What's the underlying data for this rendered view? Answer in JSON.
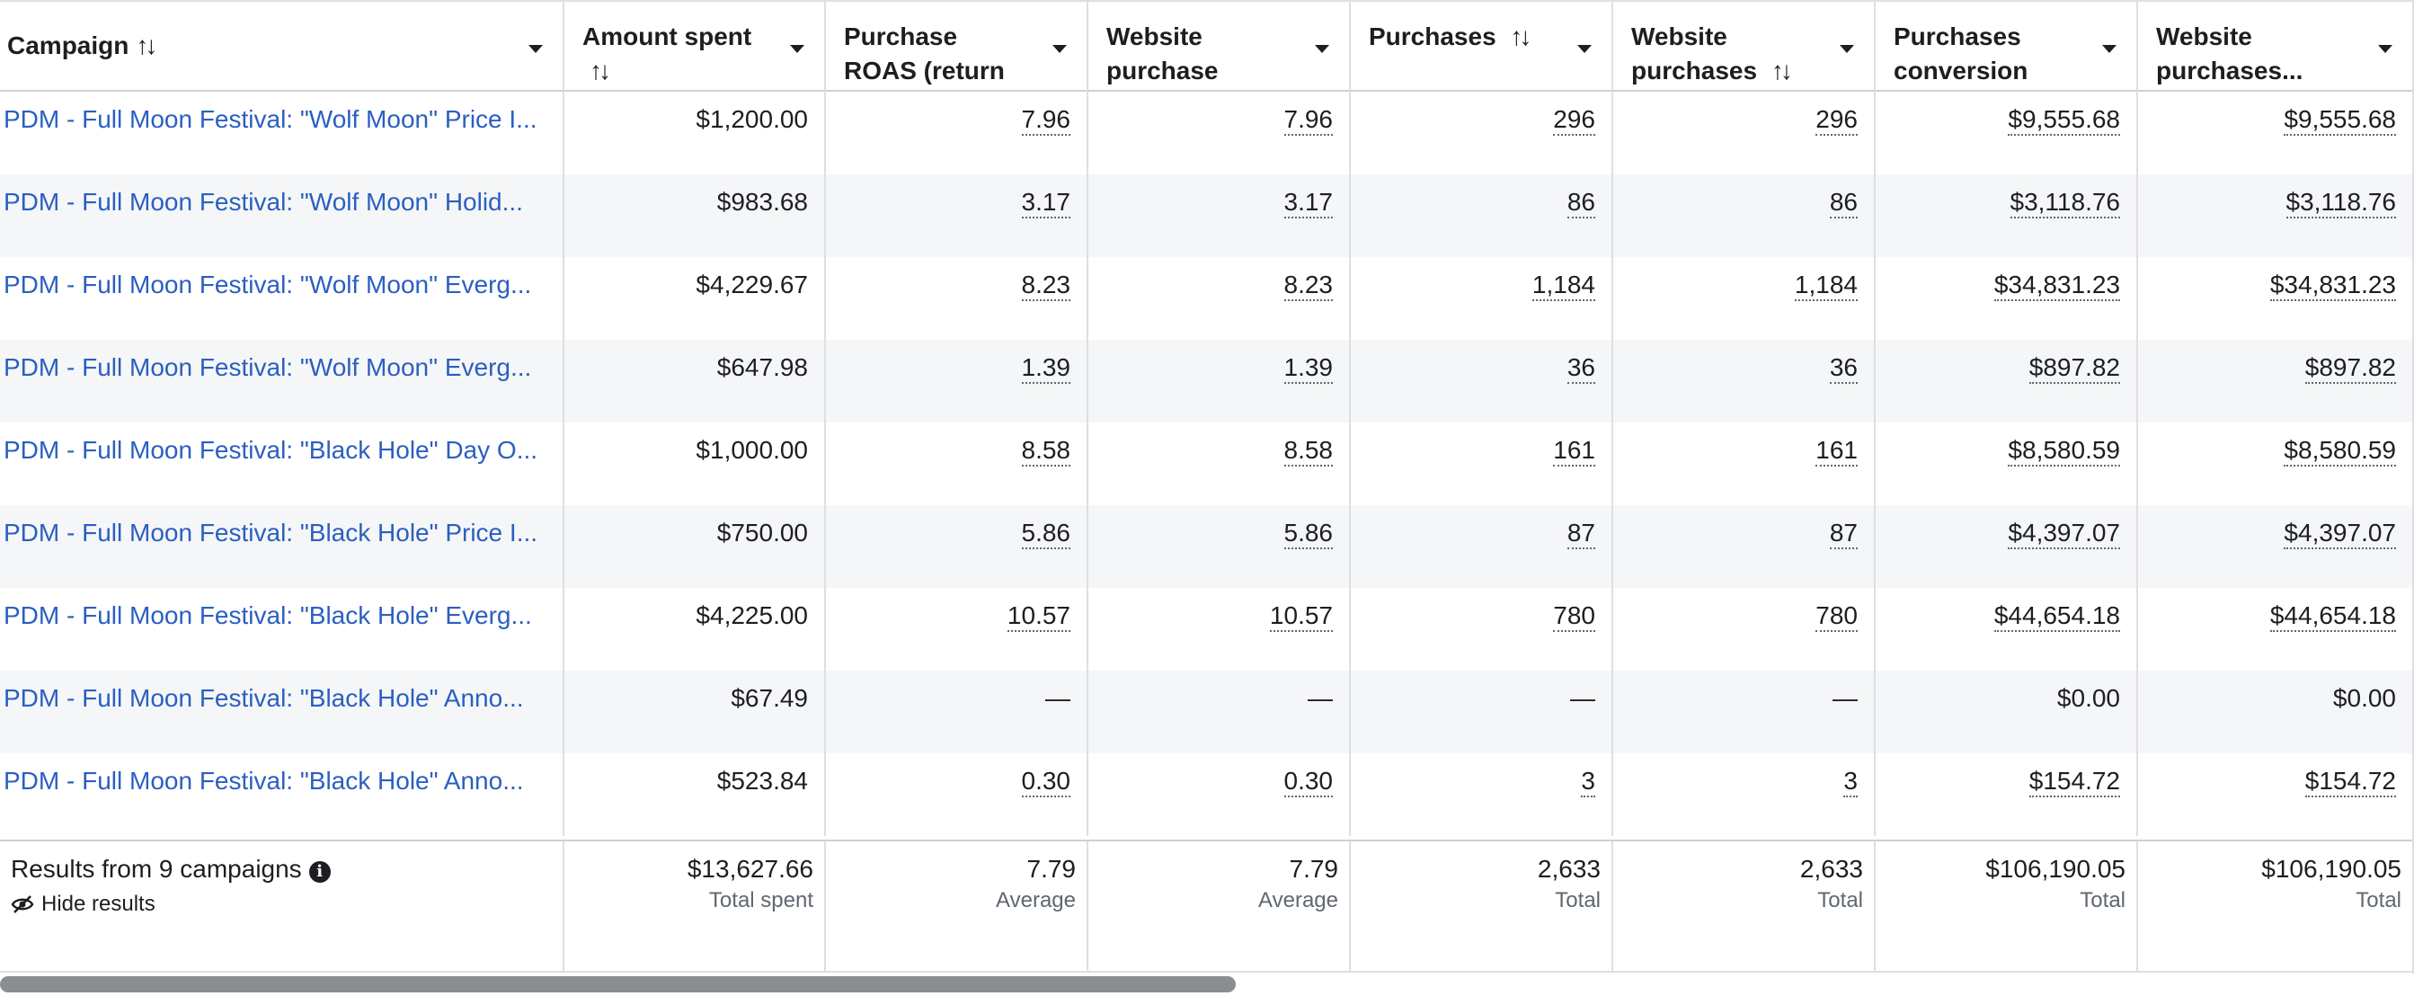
{
  "columns": [
    {
      "label": "Campaign",
      "sortable": true
    },
    {
      "label": "Amount spent",
      "sortable": true
    },
    {
      "label": "Purchase ROAS (return on ad...",
      "sortable": false
    },
    {
      "label": "Website purchase ROA...",
      "sortable": false
    },
    {
      "label": "Purchases",
      "sortable": true
    },
    {
      "label": "Website purchases",
      "sortable": true
    },
    {
      "label": "Purchases conversion val...",
      "sortable": false
    },
    {
      "label": "Website purchases...",
      "sortable": false
    }
  ],
  "sort_icon": "↑↓",
  "rows": [
    {
      "campaign": "PDM - Full Moon Festival: \"Wolf Moon\" Price I...",
      "spent": "$1,200.00",
      "roas": "7.96",
      "web_roas": "7.96",
      "purchases": "296",
      "web_purchases": "296",
      "conv_value": "$9,555.68",
      "web_conv_value": "$9,555.68"
    },
    {
      "campaign": "PDM - Full Moon Festival: \"Wolf Moon\" Holid...",
      "spent": "$983.68",
      "roas": "3.17",
      "web_roas": "3.17",
      "purchases": "86",
      "web_purchases": "86",
      "conv_value": "$3,118.76",
      "web_conv_value": "$3,118.76"
    },
    {
      "campaign": "PDM - Full Moon Festival: \"Wolf Moon\" Everg...",
      "spent": "$4,229.67",
      "roas": "8.23",
      "web_roas": "8.23",
      "purchases": "1,184",
      "web_purchases": "1,184",
      "conv_value": "$34,831.23",
      "web_conv_value": "$34,831.23"
    },
    {
      "campaign": "PDM - Full Moon Festival: \"Wolf Moon\" Everg...",
      "spent": "$647.98",
      "roas": "1.39",
      "web_roas": "1.39",
      "purchases": "36",
      "web_purchases": "36",
      "conv_value": "$897.82",
      "web_conv_value": "$897.82"
    },
    {
      "campaign": "PDM - Full Moon Festival: \"Black Hole\" Day O...",
      "spent": "$1,000.00",
      "roas": "8.58",
      "web_roas": "8.58",
      "purchases": "161",
      "web_purchases": "161",
      "conv_value": "$8,580.59",
      "web_conv_value": "$8,580.59"
    },
    {
      "campaign": "PDM - Full Moon Festival: \"Black Hole\" Price I...",
      "spent": "$750.00",
      "roas": "5.86",
      "web_roas": "5.86",
      "purchases": "87",
      "web_purchases": "87",
      "conv_value": "$4,397.07",
      "web_conv_value": "$4,397.07"
    },
    {
      "campaign": "PDM - Full Moon Festival: \"Black Hole\" Everg...",
      "spent": "$4,225.00",
      "roas": "10.57",
      "web_roas": "10.57",
      "purchases": "780",
      "web_purchases": "780",
      "conv_value": "$44,654.18",
      "web_conv_value": "$44,654.18"
    },
    {
      "campaign": "PDM - Full Moon Festival: \"Black Hole\" Anno...",
      "spent": "$67.49",
      "roas": "—",
      "web_roas": "—",
      "purchases": "—",
      "web_purchases": "—",
      "conv_value": "$0.00",
      "web_conv_value": "$0.00"
    },
    {
      "campaign": "PDM - Full Moon Festival: \"Black Hole\" Anno...",
      "spent": "$523.84",
      "roas": "0.30",
      "web_roas": "0.30",
      "purchases": "3",
      "web_purchases": "3",
      "conv_value": "$154.72",
      "web_conv_value": "$154.72"
    }
  ],
  "footer": {
    "title": "Results from 9 campaigns",
    "info_icon": "info-icon",
    "hide_label": "Hide results",
    "totals": [
      {
        "value": "$13,627.66",
        "label": "Total spent"
      },
      {
        "value": "7.79",
        "label": "Average"
      },
      {
        "value": "7.79",
        "label": "Average"
      },
      {
        "value": "2,633",
        "label": "Total"
      },
      {
        "value": "2,633",
        "label": "Total"
      },
      {
        "value": "$106,190.05",
        "label": "Total"
      },
      {
        "value": "$106,190.05",
        "label": "Total"
      }
    ]
  },
  "colors": {
    "link": "#2b5fc0",
    "row_alt": "#f5f6f7",
    "border": "#dddfe2",
    "muted": "#606770",
    "scrollbar": "#8a8d91"
  }
}
